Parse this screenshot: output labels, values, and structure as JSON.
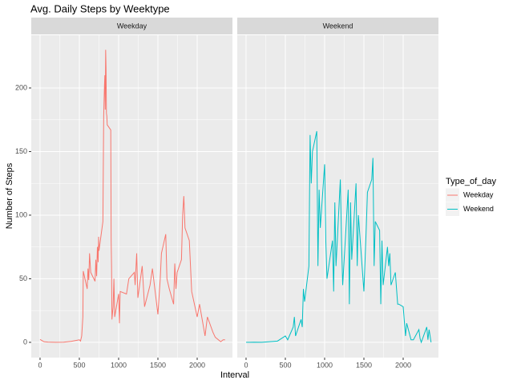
{
  "chart_data": {
    "type": "line",
    "title": "Avg. Daily Steps by Weektype",
    "x_label": "Interval",
    "y_label": "Number of Steps",
    "legend_title": "Type_of_day",
    "facets": [
      "Weekday",
      "Weekend"
    ],
    "xlim": [
      -112,
      2449
    ],
    "xticks": [
      0,
      500,
      1000,
      1500,
      2000
    ],
    "ylim": [
      -12,
      241.5
    ],
    "yticks": [
      0,
      50,
      100,
      150,
      200
    ],
    "grid": true,
    "legend": "right",
    "series": [
      {
        "name": "Weekday",
        "color": "#F8766D",
        "facet": 0,
        "x": [
          0,
          50,
          100,
          200,
          300,
          400,
          500,
          515,
          530,
          545,
          550,
          600,
          610,
          620,
          630,
          640,
          645,
          700,
          710,
          720,
          730,
          740,
          745,
          750,
          800,
          810,
          815,
          820,
          825,
          830,
          835,
          840,
          845,
          850,
          855,
          900,
          905,
          910,
          915,
          930,
          940,
          950,
          1000,
          1010,
          1020,
          1100,
          1130,
          1200,
          1210,
          1230,
          1245,
          1300,
          1330,
          1400,
          1430,
          1500,
          1530,
          1545,
          1600,
          1615,
          1645,
          1700,
          1715,
          1730,
          1745,
          1800,
          1815,
          1830,
          1845,
          1900,
          1930,
          2000,
          2030,
          2100,
          2130,
          2200,
          2230,
          2300,
          2330,
          2355
        ],
        "values": [
          2.3,
          0.5,
          0.2,
          0,
          0.1,
          0.8,
          2,
          1,
          5,
          20,
          56,
          42,
          58,
          49,
          70,
          60,
          55,
          48,
          65,
          52,
          75,
          63,
          83,
          72,
          95,
          178,
          190,
          202,
          210,
          183,
          230,
          215,
          180,
          178,
          171,
          167,
          80,
          60,
          18,
          28,
          50,
          20,
          38,
          15,
          40,
          38,
          50,
          55,
          45,
          70,
          35,
          60,
          28,
          45,
          58,
          22,
          50,
          70,
          85,
          50,
          42,
          30,
          62,
          42,
          55,
          65,
          100,
          115,
          90,
          80,
          40,
          20,
          30,
          5,
          20,
          8,
          4,
          0.5,
          2,
          2
        ]
      },
      {
        "name": "Weekend",
        "color": "#00BFC4",
        "facet": 1,
        "x": [
          0,
          50,
          100,
          200,
          300,
          400,
          500,
          530,
          600,
          615,
          630,
          700,
          715,
          730,
          745,
          800,
          815,
          830,
          845,
          900,
          915,
          930,
          945,
          1000,
          1015,
          1030,
          1100,
          1115,
          1130,
          1145,
          1200,
          1215,
          1230,
          1300,
          1315,
          1330,
          1345,
          1400,
          1415,
          1430,
          1500,
          1530,
          1545,
          1600,
          1615,
          1630,
          1645,
          1700,
          1715,
          1730,
          1745,
          1800,
          1815,
          1830,
          1845,
          1900,
          1930,
          1945,
          2000,
          2030,
          2045,
          2100,
          2130,
          2200,
          2215,
          2230,
          2300,
          2315,
          2330,
          2355
        ],
        "values": [
          0,
          0,
          0.1,
          0,
          0.5,
          1,
          5,
          2,
          12,
          20,
          5,
          18,
          12,
          42,
          32,
          60,
          163,
          125,
          150,
          166,
          60,
          120,
          90,
          140,
          80,
          50,
          80,
          40,
          110,
          60,
          128,
          80,
          45,
          120,
          30,
          110,
          65,
          125,
          60,
          100,
          40,
          90,
          118,
          128,
          145,
          60,
          95,
          88,
          30,
          80,
          45,
          75,
          60,
          70,
          45,
          55,
          30,
          30,
          28,
          5,
          15,
          2,
          2,
          10,
          3,
          0,
          12,
          2,
          10,
          0
        ]
      }
    ]
  }
}
